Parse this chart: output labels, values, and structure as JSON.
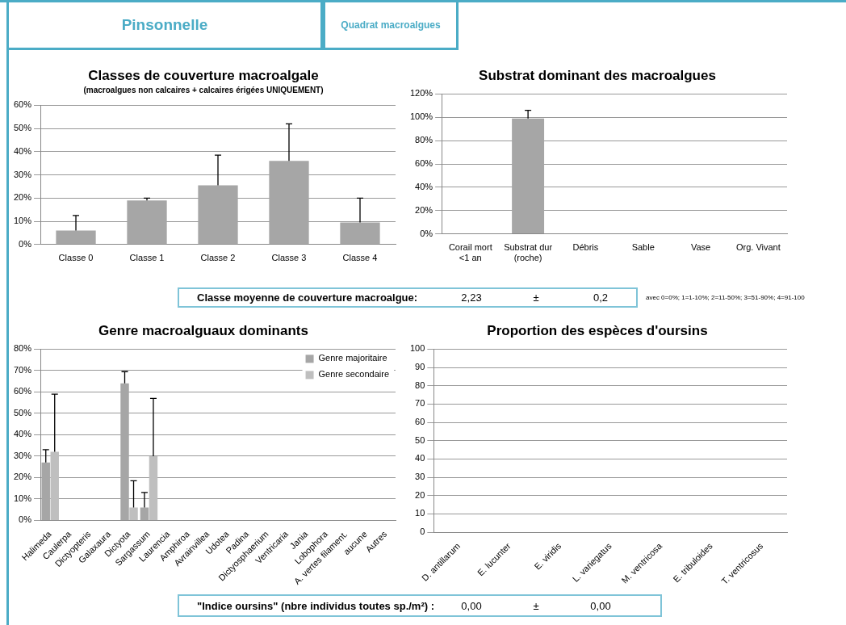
{
  "chart_data": [
    {
      "type": "other",
      "title": "Pinsonnelle",
      "subtitle": "Quadrat macroalgues"
    },
    {
      "type": "bar",
      "title": "Classes de couverture macroalgale",
      "subtitle": "(macroalgues non calcaires + calcaires érigées UNIQUEMENT)",
      "categories": [
        "Classe 0",
        "Classe 1",
        "Classe 2",
        "Classe 3",
        "Classe 4"
      ],
      "values": [
        6,
        19,
        25.5,
        36,
        9.5
      ],
      "errors": [
        [
          6,
          12.5
        ],
        [
          19,
          20
        ],
        [
          25.5,
          38.5
        ],
        [
          36,
          52
        ],
        [
          9.5,
          20
        ]
      ],
      "color": "#a6a6a6",
      "ylim": [
        0,
        60
      ],
      "yticks": [
        {
          "value": 0,
          "label": "0%"
        },
        {
          "value": 10,
          "label": "10%"
        },
        {
          "value": 20,
          "label": "20%"
        },
        {
          "value": 30,
          "label": "30%"
        },
        {
          "value": 40,
          "label": "40%"
        },
        {
          "value": 50,
          "label": "50%"
        },
        {
          "value": 60,
          "label": "60%"
        }
      ],
      "grid": "y"
    },
    {
      "type": "bar",
      "title": "Substrat dominant des macroalgues",
      "categories": [
        "Corail mort <1 an",
        "Substrat dur (roche)",
        "Débris",
        "Sable",
        "Vase",
        "Org. Vivant"
      ],
      "values": [
        0,
        99,
        0,
        0,
        0,
        0
      ],
      "errors": [
        null,
        [
          99,
          106
        ],
        null,
        null,
        null,
        null
      ],
      "color": "#a6a6a6",
      "ylim": [
        0,
        120
      ],
      "yticks": [
        {
          "value": 0,
          "label": "0%"
        },
        {
          "value": 20,
          "label": "20%"
        },
        {
          "value": 40,
          "label": "40%"
        },
        {
          "value": 60,
          "label": "60%"
        },
        {
          "value": 80,
          "label": "80%"
        },
        {
          "value": 100,
          "label": "100%"
        },
        {
          "value": 120,
          "label": "120%"
        }
      ],
      "grid": "y"
    },
    {
      "type": "other",
      "title": "Classe moyenne de couverture macroalgue:",
      "subtitle": "avec 0=0%; 1=1-10%; 2=11-50%; 3=51-90%; 4=91-100",
      "annotations": [
        "2,23",
        "±",
        "0,2"
      ]
    },
    {
      "type": "bar",
      "title": "Genre macroalguaux dominants",
      "categories": [
        "Halimeda",
        "Caulerpa",
        "Dictyopteris",
        "Galaxaura",
        "Dictyota",
        "Sargassum",
        "Laurencia",
        "Amphiroa",
        "Avrainvillea",
        "Udotea",
        "Padina",
        "Dictyosphaerium",
        "Ventricaria",
        "Jania",
        "Lobophora",
        "A. vertes filament.",
        "aucune",
        "Autres"
      ],
      "series": [
        {
          "name": "Genre majoritaire",
          "color": "#a6a6a6",
          "values": [
            27,
            0,
            0,
            0,
            64,
            6,
            0,
            0,
            0,
            0,
            0,
            0,
            0,
            0,
            0,
            0,
            0,
            0
          ],
          "errors": [
            [
              27,
              33
            ],
            null,
            null,
            null,
            [
              64,
              69.5
            ],
            [
              6,
              13
            ],
            null,
            null,
            null,
            null,
            null,
            null,
            null,
            null,
            null,
            null,
            null,
            null
          ]
        },
        {
          "name": "Genre secondaire",
          "color": "#bfbfbf",
          "values": [
            32,
            0,
            0,
            0,
            6,
            30,
            0,
            0,
            0,
            0,
            0,
            0,
            0,
            0,
            0,
            0,
            0,
            0
          ],
          "errors": [
            [
              32,
              59
            ],
            null,
            null,
            null,
            [
              6,
              18.5
            ],
            [
              30,
              57
            ],
            null,
            null,
            null,
            null,
            null,
            null,
            null,
            null,
            null,
            null,
            null,
            null
          ]
        }
      ],
      "ylim": [
        0,
        80
      ],
      "yticks": [
        {
          "value": 0,
          "label": "0%"
        },
        {
          "value": 10,
          "label": "10%"
        },
        {
          "value": 20,
          "label": "20%"
        },
        {
          "value": 30,
          "label": "30%"
        },
        {
          "value": 40,
          "label": "40%"
        },
        {
          "value": 50,
          "label": "50%"
        },
        {
          "value": 60,
          "label": "60%"
        },
        {
          "value": 70,
          "label": "70%"
        },
        {
          "value": 80,
          "label": "80%"
        }
      ],
      "grid": "y",
      "legend": "top right"
    },
    {
      "type": "bar",
      "title": "Proportion des espèces d'oursins",
      "categories": [
        "D. antillarum",
        "E. lucunter",
        "E. viridis",
        "L. variegatus",
        "M. ventricosa",
        "E. tribuloides",
        "T. ventricosus"
      ],
      "values": [
        0,
        0,
        0,
        0,
        0,
        0,
        0
      ],
      "color": "#a6a6a6",
      "ylim": [
        0,
        100
      ],
      "yticks": [
        0,
        10,
        20,
        30,
        40,
        50,
        60,
        70,
        80,
        90,
        100
      ],
      "grid": "y"
    },
    {
      "type": "other",
      "title": "\"Indice oursins\" (nbre individus toutes sp./m²) :",
      "annotations": [
        "0,00",
        "±",
        "0,00"
      ]
    }
  ]
}
